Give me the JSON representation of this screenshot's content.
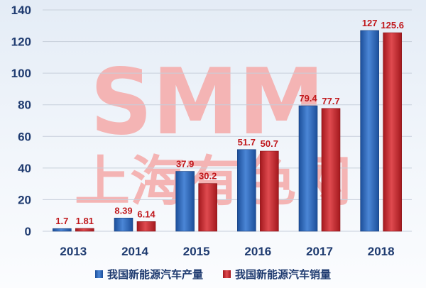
{
  "watermark": {
    "latin": "SMM",
    "cjk": "上海有色网"
  },
  "colors": {
    "series1": "#2e66b5",
    "series2": "#c9282e",
    "grid": "#c7cfdb",
    "watermark": "#f4b4b4",
    "label": "#c0181c",
    "axis_text": "#1f3b70"
  },
  "chart_data": {
    "type": "bar",
    "categories": [
      "2013",
      "2014",
      "2015",
      "2016",
      "2017",
      "2018"
    ],
    "series": [
      {
        "name": "我国新能源汽车产量",
        "values": [
          1.7,
          8.39,
          37.9,
          51.7,
          79.4,
          127
        ],
        "labels": [
          "1.7",
          "8.39",
          "37.9",
          "51.7",
          "79.4",
          "127"
        ]
      },
      {
        "name": "我国新能源汽车销量",
        "values": [
          1.81,
          6.14,
          30.2,
          50.7,
          77.7,
          125.6
        ],
        "labels": [
          "1.81",
          "6.14",
          "30.2",
          "50.7",
          "77.7",
          "125.6"
        ]
      }
    ],
    "yticks": [
      "0",
      "20",
      "40",
      "60",
      "80",
      "100",
      "120",
      "140"
    ],
    "ylim": [
      0,
      140
    ],
    "grid": true,
    "legend_position": "bottom"
  }
}
